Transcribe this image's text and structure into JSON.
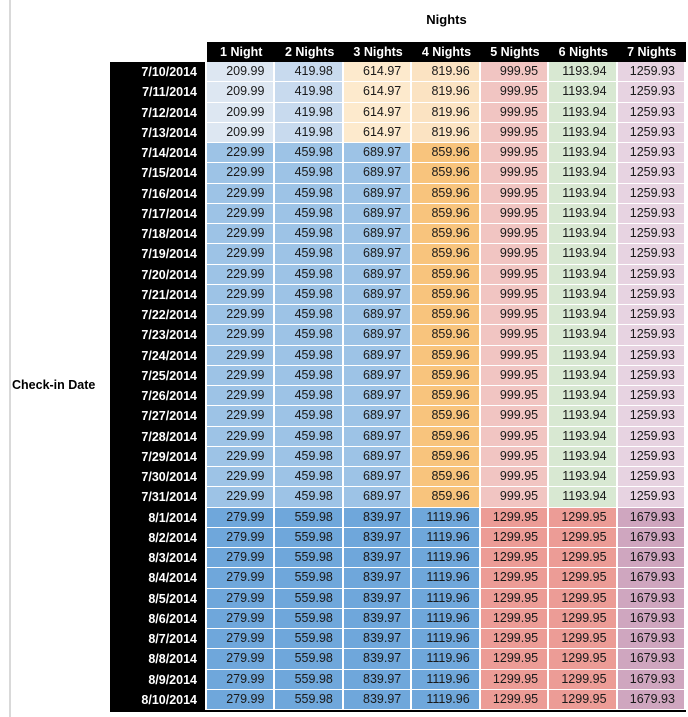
{
  "table": {
    "title": "Nights",
    "row_axis_label": "Check-in Date",
    "columns": [
      "1 Night",
      "2 Nights",
      "3 Nights",
      "4 Nights",
      "5 Nights",
      "6 Nights",
      "7 Nights"
    ]
  },
  "palette": {
    "header_bg": "#000000",
    "header_text": "#ffffff",
    "date_bg": "#000000",
    "date_text": "#ffffff",
    "value_text": "#1a1a1a",
    "gridline": "#ffffff",
    "left_rule": "#d9d9d9",
    "tier_column_colors": {
      "t1": [
        "#dde7f2",
        "#c8daee",
        "#fdeacd",
        "#fbe3c2",
        "#f1c5c2",
        "#d8e8d2",
        "#e7d3e1"
      ],
      "t2": [
        "#9dc3e6",
        "#9dc3e6",
        "#9dc3e6",
        "#f8c47d",
        "#f1c5c2",
        "#d8e8d2",
        "#e7d3e1"
      ],
      "t3": [
        "#6fa7db",
        "#6fa7db",
        "#6fa7db",
        "#6fa7db",
        "#ec9c96",
        "#ec9c96",
        "#cfa6bf"
      ]
    }
  },
  "chart_data": {
    "type": "table",
    "title": "Nights",
    "row_label": "Check-in Date",
    "columns": [
      "1 Night",
      "2 Nights",
      "3 Nights",
      "4 Nights",
      "5 Nights",
      "6 Nights",
      "7 Nights"
    ],
    "rows": [
      {
        "date": "7/10/2014",
        "tier": "t1",
        "values": [
          209.99,
          419.98,
          614.97,
          819.96,
          999.95,
          1193.94,
          1259.93
        ]
      },
      {
        "date": "7/11/2014",
        "tier": "t1",
        "values": [
          209.99,
          419.98,
          614.97,
          819.96,
          999.95,
          1193.94,
          1259.93
        ]
      },
      {
        "date": "7/12/2014",
        "tier": "t1",
        "values": [
          209.99,
          419.98,
          614.97,
          819.96,
          999.95,
          1193.94,
          1259.93
        ]
      },
      {
        "date": "7/13/2014",
        "tier": "t1",
        "values": [
          209.99,
          419.98,
          614.97,
          819.96,
          999.95,
          1193.94,
          1259.93
        ]
      },
      {
        "date": "7/14/2014",
        "tier": "t2",
        "values": [
          229.99,
          459.98,
          689.97,
          859.96,
          999.95,
          1193.94,
          1259.93
        ]
      },
      {
        "date": "7/15/2014",
        "tier": "t2",
        "values": [
          229.99,
          459.98,
          689.97,
          859.96,
          999.95,
          1193.94,
          1259.93
        ]
      },
      {
        "date": "7/16/2014",
        "tier": "t2",
        "values": [
          229.99,
          459.98,
          689.97,
          859.96,
          999.95,
          1193.94,
          1259.93
        ]
      },
      {
        "date": "7/17/2014",
        "tier": "t2",
        "values": [
          229.99,
          459.98,
          689.97,
          859.96,
          999.95,
          1193.94,
          1259.93
        ]
      },
      {
        "date": "7/18/2014",
        "tier": "t2",
        "values": [
          229.99,
          459.98,
          689.97,
          859.96,
          999.95,
          1193.94,
          1259.93
        ]
      },
      {
        "date": "7/19/2014",
        "tier": "t2",
        "values": [
          229.99,
          459.98,
          689.97,
          859.96,
          999.95,
          1193.94,
          1259.93
        ]
      },
      {
        "date": "7/20/2014",
        "tier": "t2",
        "values": [
          229.99,
          459.98,
          689.97,
          859.96,
          999.95,
          1193.94,
          1259.93
        ]
      },
      {
        "date": "7/21/2014",
        "tier": "t2",
        "values": [
          229.99,
          459.98,
          689.97,
          859.96,
          999.95,
          1193.94,
          1259.93
        ]
      },
      {
        "date": "7/22/2014",
        "tier": "t2",
        "values": [
          229.99,
          459.98,
          689.97,
          859.96,
          999.95,
          1193.94,
          1259.93
        ]
      },
      {
        "date": "7/23/2014",
        "tier": "t2",
        "values": [
          229.99,
          459.98,
          689.97,
          859.96,
          999.95,
          1193.94,
          1259.93
        ]
      },
      {
        "date": "7/24/2014",
        "tier": "t2",
        "values": [
          229.99,
          459.98,
          689.97,
          859.96,
          999.95,
          1193.94,
          1259.93
        ]
      },
      {
        "date": "7/25/2014",
        "tier": "t2",
        "values": [
          229.99,
          459.98,
          689.97,
          859.96,
          999.95,
          1193.94,
          1259.93
        ]
      },
      {
        "date": "7/26/2014",
        "tier": "t2",
        "values": [
          229.99,
          459.98,
          689.97,
          859.96,
          999.95,
          1193.94,
          1259.93
        ]
      },
      {
        "date": "7/27/2014",
        "tier": "t2",
        "values": [
          229.99,
          459.98,
          689.97,
          859.96,
          999.95,
          1193.94,
          1259.93
        ]
      },
      {
        "date": "7/28/2014",
        "tier": "t2",
        "values": [
          229.99,
          459.98,
          689.97,
          859.96,
          999.95,
          1193.94,
          1259.93
        ]
      },
      {
        "date": "7/29/2014",
        "tier": "t2",
        "values": [
          229.99,
          459.98,
          689.97,
          859.96,
          999.95,
          1193.94,
          1259.93
        ]
      },
      {
        "date": "7/30/2014",
        "tier": "t2",
        "values": [
          229.99,
          459.98,
          689.97,
          859.96,
          999.95,
          1193.94,
          1259.93
        ]
      },
      {
        "date": "7/31/2014",
        "tier": "t2",
        "values": [
          229.99,
          459.98,
          689.97,
          859.96,
          999.95,
          1193.94,
          1259.93
        ]
      },
      {
        "date": "8/1/2014",
        "tier": "t3",
        "values": [
          279.99,
          559.98,
          839.97,
          1119.96,
          1299.95,
          1299.95,
          1679.93
        ]
      },
      {
        "date": "8/2/2014",
        "tier": "t3",
        "values": [
          279.99,
          559.98,
          839.97,
          1119.96,
          1299.95,
          1299.95,
          1679.93
        ]
      },
      {
        "date": "8/3/2014",
        "tier": "t3",
        "values": [
          279.99,
          559.98,
          839.97,
          1119.96,
          1299.95,
          1299.95,
          1679.93
        ]
      },
      {
        "date": "8/4/2014",
        "tier": "t3",
        "values": [
          279.99,
          559.98,
          839.97,
          1119.96,
          1299.95,
          1299.95,
          1679.93
        ]
      },
      {
        "date": "8/5/2014",
        "tier": "t3",
        "values": [
          279.99,
          559.98,
          839.97,
          1119.96,
          1299.95,
          1299.95,
          1679.93
        ]
      },
      {
        "date": "8/6/2014",
        "tier": "t3",
        "values": [
          279.99,
          559.98,
          839.97,
          1119.96,
          1299.95,
          1299.95,
          1679.93
        ]
      },
      {
        "date": "8/7/2014",
        "tier": "t3",
        "values": [
          279.99,
          559.98,
          839.97,
          1119.96,
          1299.95,
          1299.95,
          1679.93
        ]
      },
      {
        "date": "8/8/2014",
        "tier": "t3",
        "values": [
          279.99,
          559.98,
          839.97,
          1119.96,
          1299.95,
          1299.95,
          1679.93
        ]
      },
      {
        "date": "8/9/2014",
        "tier": "t3",
        "values": [
          279.99,
          559.98,
          839.97,
          1119.96,
          1299.95,
          1299.95,
          1679.93
        ]
      },
      {
        "date": "8/10/2014",
        "tier": "t3",
        "values": [
          279.99,
          559.98,
          839.97,
          1119.96,
          1299.95,
          1299.95,
          1679.93
        ]
      }
    ]
  }
}
